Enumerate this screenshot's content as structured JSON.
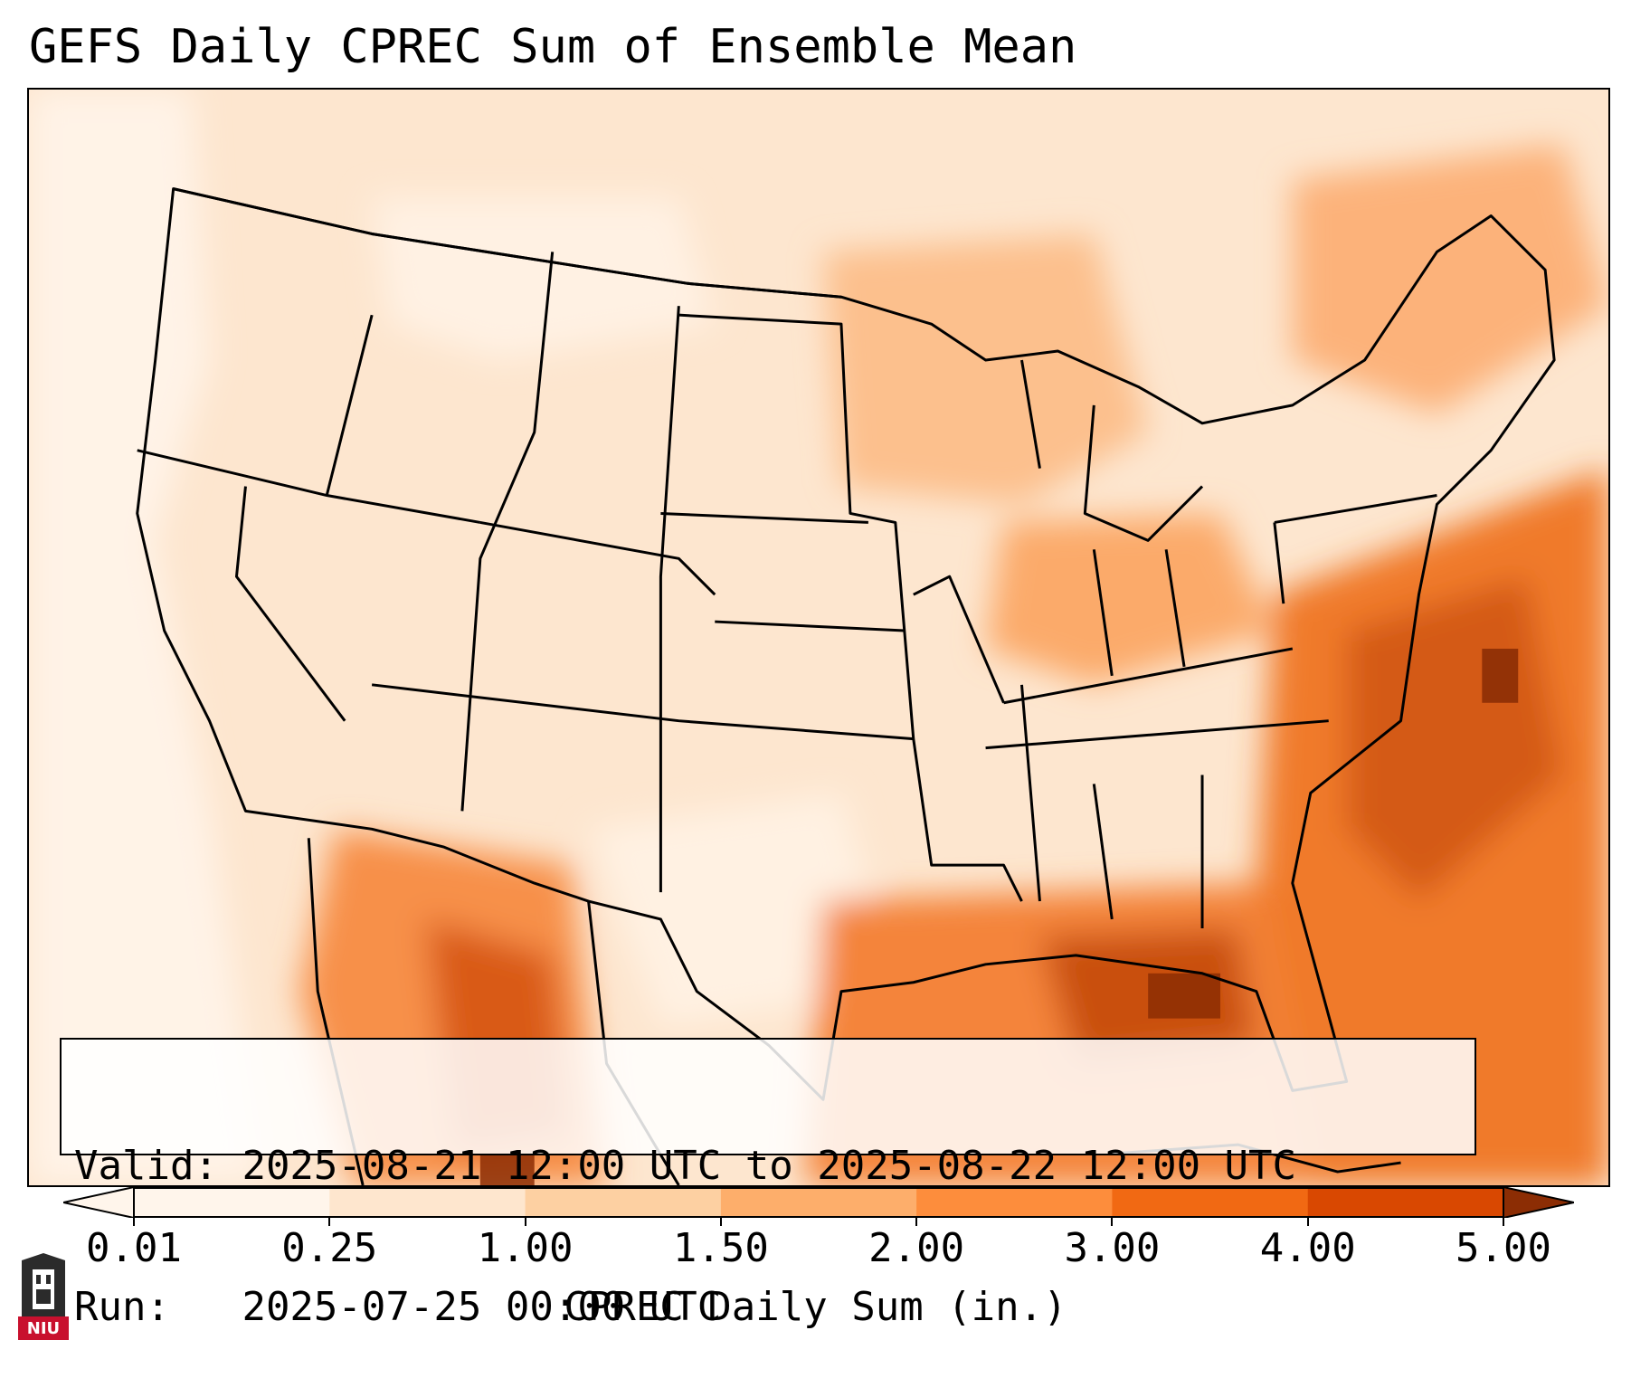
{
  "title": "GEFS Daily CPREC Sum of Ensemble Mean",
  "info": {
    "valid_label": "Valid:",
    "valid_value": "2025-08-21 12:00 UTC to 2025-08-22 12:00 UTC",
    "run_label": "Run:",
    "run_value": "2025-07-25 00:00 UTC"
  },
  "colorbar": {
    "label": "CPREC Daily Sum (in.)",
    "ticks": [
      "0.01",
      "0.25",
      "1.00",
      "1.50",
      "2.00",
      "3.00",
      "4.00",
      "5.00"
    ],
    "colors": [
      "#fff5eb",
      "#fee6ce",
      "#fdd0a2",
      "#fdae6b",
      "#fd8d3c",
      "#f16913",
      "#d94801",
      "#8c2d04"
    ],
    "extend": "both"
  },
  "logo": {
    "text": "NIU",
    "colors": {
      "shield": "#2b2b2b",
      "banner": "#c8102e"
    }
  },
  "map": {
    "projection": "lambert-conformal",
    "region": "CONUS",
    "colors": {
      "land_low": "#fff5eb",
      "heavy": "#8c2d04",
      "outline": "#000000"
    }
  }
}
